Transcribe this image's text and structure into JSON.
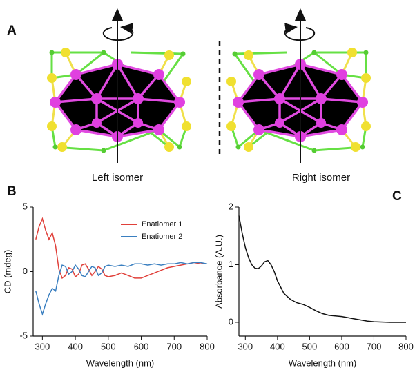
{
  "panel_a": {
    "label": "A",
    "left_caption": "Left isomer",
    "right_caption": "Right isomer"
  },
  "chart_data": [
    {
      "type": "line",
      "panel_label": "B",
      "xlabel": "Wavelength (nm)",
      "ylabel": "CD (mdeg)",
      "xlim": [
        272,
        800
      ],
      "xticks": [
        300,
        400,
        500,
        600,
        700,
        800
      ],
      "ylim": [
        -5,
        5
      ],
      "yticks": [
        -5,
        0,
        5
      ],
      "legend": "top-right",
      "x": [
        280,
        290,
        300,
        310,
        320,
        330,
        340,
        350,
        360,
        370,
        380,
        390,
        400,
        410,
        420,
        430,
        440,
        450,
        460,
        470,
        480,
        490,
        500,
        520,
        540,
        560,
        580,
        600,
        620,
        640,
        660,
        680,
        700,
        720,
        740,
        760,
        780,
        800
      ],
      "series": [
        {
          "name": "Enatiomer 1",
          "color": "#e0403a",
          "values": [
            2.5,
            3.5,
            4.1,
            3.2,
            2.5,
            3.0,
            2.0,
            0.2,
            -0.5,
            -0.3,
            0.3,
            0.2,
            -0.4,
            -0.2,
            0.5,
            0.6,
            0.2,
            -0.3,
            0.0,
            0.4,
            0.2,
            -0.3,
            -0.4,
            -0.3,
            -0.1,
            -0.3,
            -0.5,
            -0.5,
            -0.3,
            -0.1,
            0.1,
            0.3,
            0.4,
            0.5,
            0.6,
            0.7,
            0.6,
            0.6
          ]
        },
        {
          "name": "Enatiomer 2",
          "color": "#3a7fc0",
          "values": [
            -1.5,
            -2.5,
            -3.3,
            -2.5,
            -1.8,
            -1.3,
            -1.5,
            -0.3,
            0.5,
            0.4,
            -0.2,
            0.0,
            0.5,
            0.2,
            -0.3,
            -0.4,
            0.0,
            0.4,
            0.3,
            -0.3,
            -0.1,
            0.4,
            0.5,
            0.4,
            0.5,
            0.4,
            0.6,
            0.6,
            0.5,
            0.6,
            0.5,
            0.6,
            0.6,
            0.7,
            0.6,
            0.7,
            0.7,
            0.6
          ]
        }
      ]
    },
    {
      "type": "line",
      "panel_label": "C",
      "xlabel": "Wavelength (nm)",
      "ylabel": "Absorbance (A.U.)",
      "xlim": [
        280,
        800
      ],
      "xticks": [
        300,
        400,
        500,
        600,
        700,
        800
      ],
      "ylim": [
        -0.24,
        2
      ],
      "yticks": [
        0,
        1,
        2
      ],
      "x": [
        280,
        290,
        300,
        310,
        320,
        330,
        340,
        350,
        360,
        370,
        380,
        390,
        400,
        420,
        440,
        460,
        480,
        500,
        520,
        540,
        560,
        580,
        600,
        620,
        640,
        660,
        680,
        700,
        750,
        800
      ],
      "series": [
        {
          "color": "#111111",
          "values": [
            1.85,
            1.55,
            1.3,
            1.12,
            1.0,
            0.94,
            0.93,
            0.98,
            1.05,
            1.07,
            1.0,
            0.88,
            0.72,
            0.5,
            0.4,
            0.34,
            0.31,
            0.26,
            0.2,
            0.15,
            0.12,
            0.11,
            0.1,
            0.08,
            0.06,
            0.04,
            0.02,
            0.01,
            0.0,
            0.0
          ]
        }
      ]
    }
  ]
}
